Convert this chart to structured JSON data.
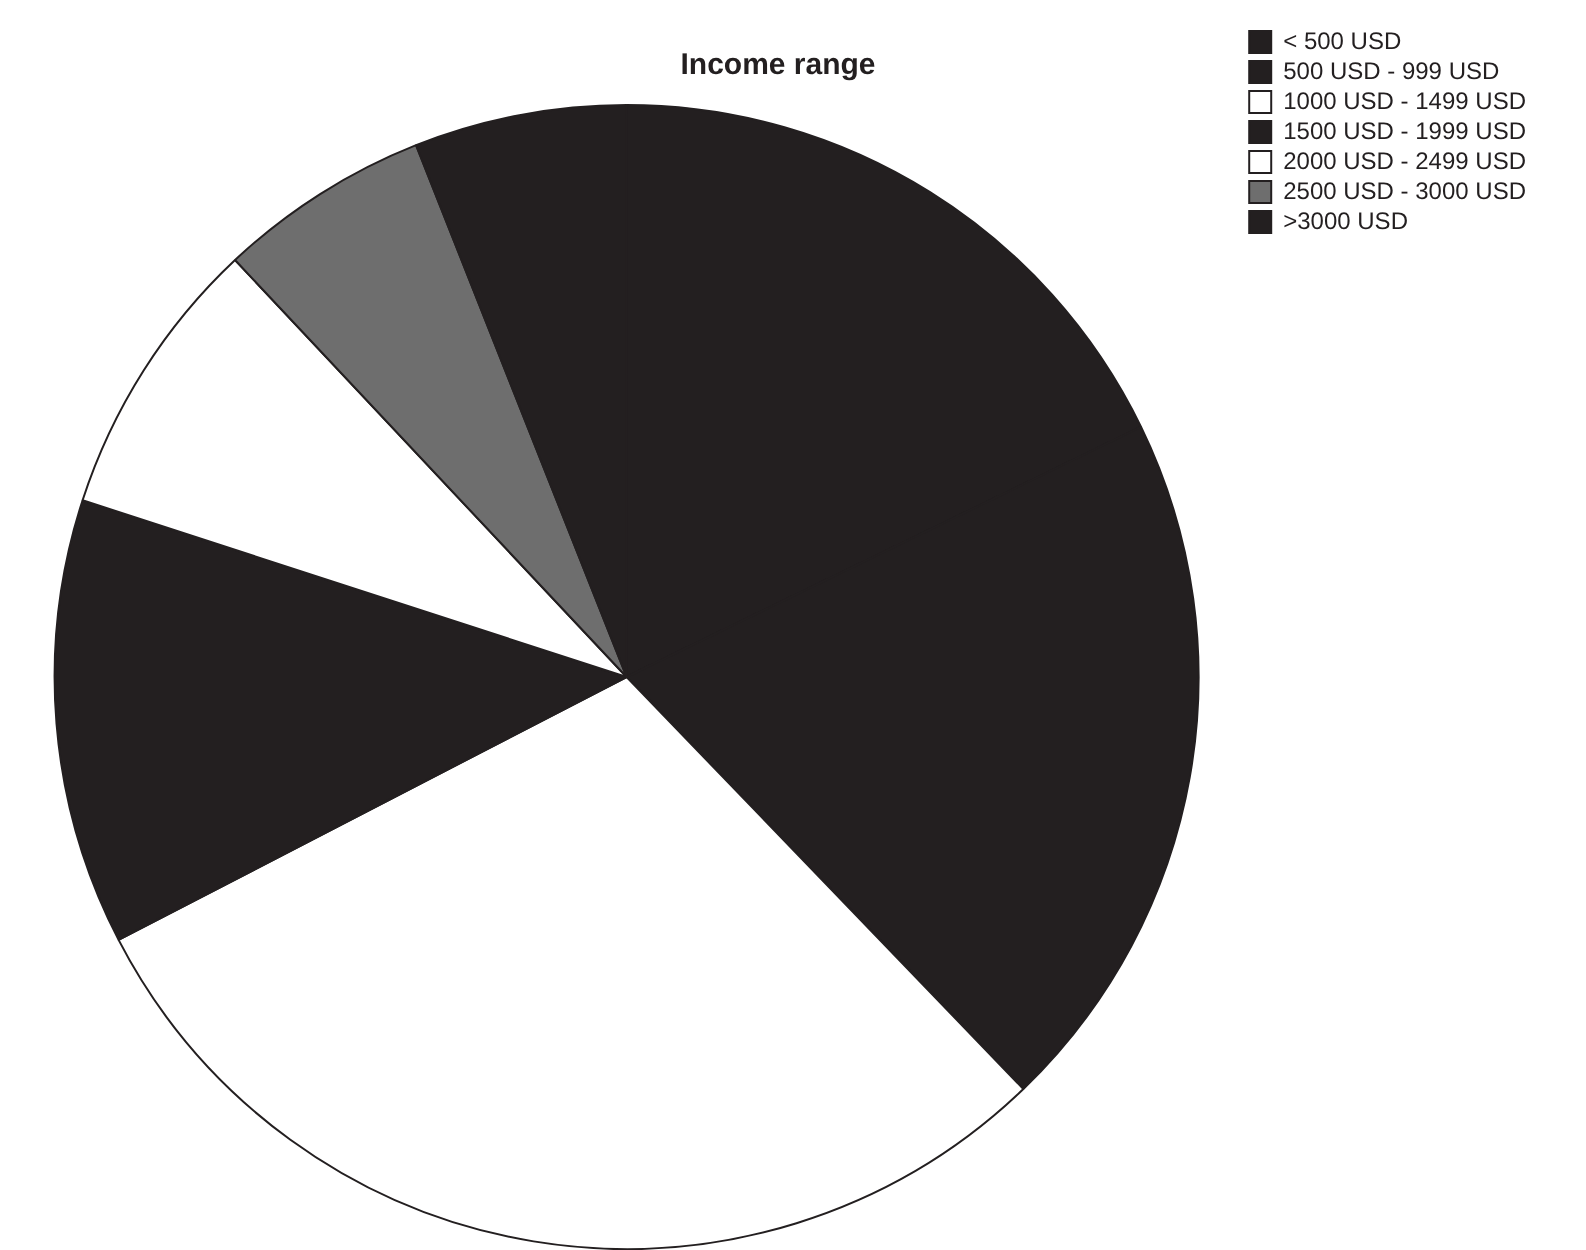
{
  "chart_data": {
    "type": "pie",
    "title": "Income range",
    "categories": [
      "< 500 USD",
      "500 USD - 999 USD",
      "1000 USD - 1499 USD",
      "1500 USD - 1999 USD",
      "2000 USD - 2499 USD",
      "2500 USD - 3000 USD",
      ">3000 USD"
    ],
    "values": [
      17.8,
      20,
      29.6,
      12.6,
      8,
      6,
      6
    ],
    "colors": [
      "#231f20",
      "#231f20",
      "#ffffff",
      "#231f20",
      "#ffffff",
      "#6e6e6e",
      "#231f20"
    ],
    "legend": "top right"
  }
}
